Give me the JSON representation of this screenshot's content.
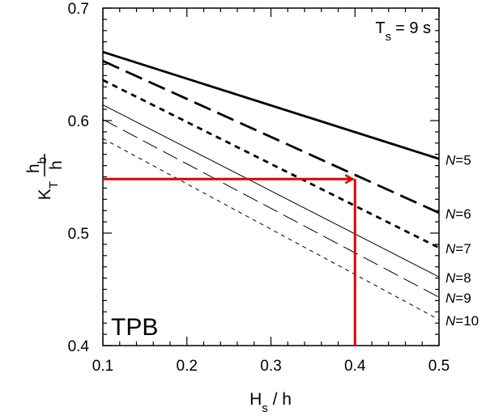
{
  "chart_data": {
    "type": "line",
    "title": "",
    "panel_label": "TPB",
    "parameter": {
      "symbol": "T",
      "subscript": "s",
      "value": "= 9 s"
    },
    "xlabel": {
      "base": "H",
      "subscript": "s",
      "rest": " / h"
    },
    "ylabel": {
      "prefix": "K",
      "prefix_sub": "T",
      "numerator": "h",
      "numerator_sub": "b",
      "denominator": "h"
    },
    "xlim": [
      0.1,
      0.5
    ],
    "ylim": [
      0.4,
      0.7
    ],
    "x_ticks": [
      0.1,
      0.2,
      0.3,
      0.4,
      0.5
    ],
    "x_tick_labels": [
      "0.1",
      "0.2",
      "0.3",
      "0.4",
      "0.5"
    ],
    "y_ticks": [
      0.4,
      0.5,
      0.6,
      0.7
    ],
    "y_tick_labels": [
      "0.4",
      "0.5",
      "0.6",
      "0.7"
    ],
    "series": [
      {
        "name": "N=5",
        "label_var": "N",
        "label_rest": "=5",
        "x": [
          0.1,
          0.5
        ],
        "y": [
          0.661,
          0.566
        ],
        "stroke_width": 2.8,
        "dash": ""
      },
      {
        "name": "N=6",
        "label_var": "N",
        "label_rest": "=6",
        "x": [
          0.1,
          0.5
        ],
        "y": [
          0.653,
          0.518
        ],
        "stroke_width": 2.8,
        "dash": "22,9"
      },
      {
        "name": "N=7",
        "label_var": "N",
        "label_rest": "=7",
        "x": [
          0.1,
          0.5
        ],
        "y": [
          0.636,
          0.487
        ],
        "stroke_width": 2.8,
        "dash": "7,6"
      },
      {
        "name": "N=8",
        "label_var": "N",
        "label_rest": "=8",
        "x": [
          0.1,
          0.5
        ],
        "y": [
          0.614,
          0.461
        ],
        "stroke_width": 1,
        "dash": ""
      },
      {
        "name": "N=9",
        "label_var": "N",
        "label_rest": "=9",
        "x": [
          0.1,
          0.5
        ],
        "y": [
          0.601,
          0.443
        ],
        "stroke_width": 1,
        "dash": "20,8"
      },
      {
        "name": "N=10",
        "label_var": "N",
        "label_rest": "=10",
        "x": [
          0.1,
          0.5
        ],
        "y": [
          0.584,
          0.423
        ],
        "stroke_width": 1,
        "dash": "5,5"
      }
    ],
    "annotation": {
      "type": "red-arrow-path",
      "color": "#e60000",
      "x_value": 0.4,
      "y_value": 0.548,
      "from_x_axis": 0.4,
      "to_y_axis": 0.1
    },
    "grid": false
  }
}
